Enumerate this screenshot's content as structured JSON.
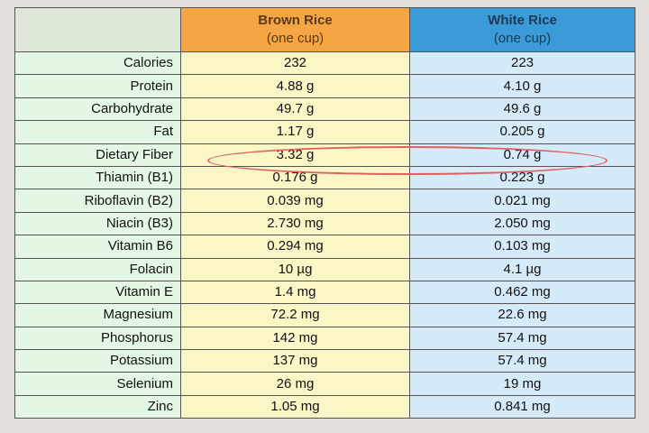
{
  "header": {
    "brown_title": "Brown Rice",
    "brown_sub": "(one cup)",
    "white_title": "White Rice",
    "white_sub": "(one cup)"
  },
  "rows": [
    {
      "label": "Calories",
      "brown": "232",
      "white": "223"
    },
    {
      "label": "Protein",
      "brown": "4.88 g",
      "white": "4.10 g"
    },
    {
      "label": "Carbohydrate",
      "brown": "49.7 g",
      "white": "49.6 g"
    },
    {
      "label": "Fat",
      "brown": "1.17 g",
      "white": "0.205 g"
    },
    {
      "label": "Dietary Fiber",
      "brown": "3.32 g",
      "white": "0.74 g"
    },
    {
      "label": "Thiamin (B1)",
      "brown": "0.176 g",
      "white": "0.223 g"
    },
    {
      "label": "Riboflavin (B2)",
      "brown": "0.039 mg",
      "white": "0.021 mg"
    },
    {
      "label": "Niacin (B3)",
      "brown": "2.730 mg",
      "white": "2.050 mg"
    },
    {
      "label": "Vitamin B6",
      "brown": "0.294 mg",
      "white": "0.103 mg"
    },
    {
      "label": "Folacin",
      "brown": "10 µg",
      "white": "4.1 µg"
    },
    {
      "label": "Vitamin E",
      "brown": "1.4 mg",
      "white": "0.462 mg"
    },
    {
      "label": "Magnesium",
      "brown": "72.2 mg",
      "white": "22.6 mg"
    },
    {
      "label": "Phosphorus",
      "brown": "142 mg",
      "white": "57.4 mg"
    },
    {
      "label": "Potassium",
      "brown": "137 mg",
      "white": "57.4 mg"
    },
    {
      "label": "Selenium",
      "brown": "26 mg",
      "white": "19 mg"
    },
    {
      "label": "Zinc",
      "brown": "1.05 mg",
      "white": "0.841 mg"
    }
  ],
  "highlighted_row": "Dietary Fiber",
  "colors": {
    "brown_header": "#f6a545",
    "white_header": "#3b9bd8",
    "label_bg": "#e4f6e4",
    "brown_bg": "#fbf6c6",
    "white_bg": "#d6ebf9",
    "highlight": "#e06060"
  }
}
